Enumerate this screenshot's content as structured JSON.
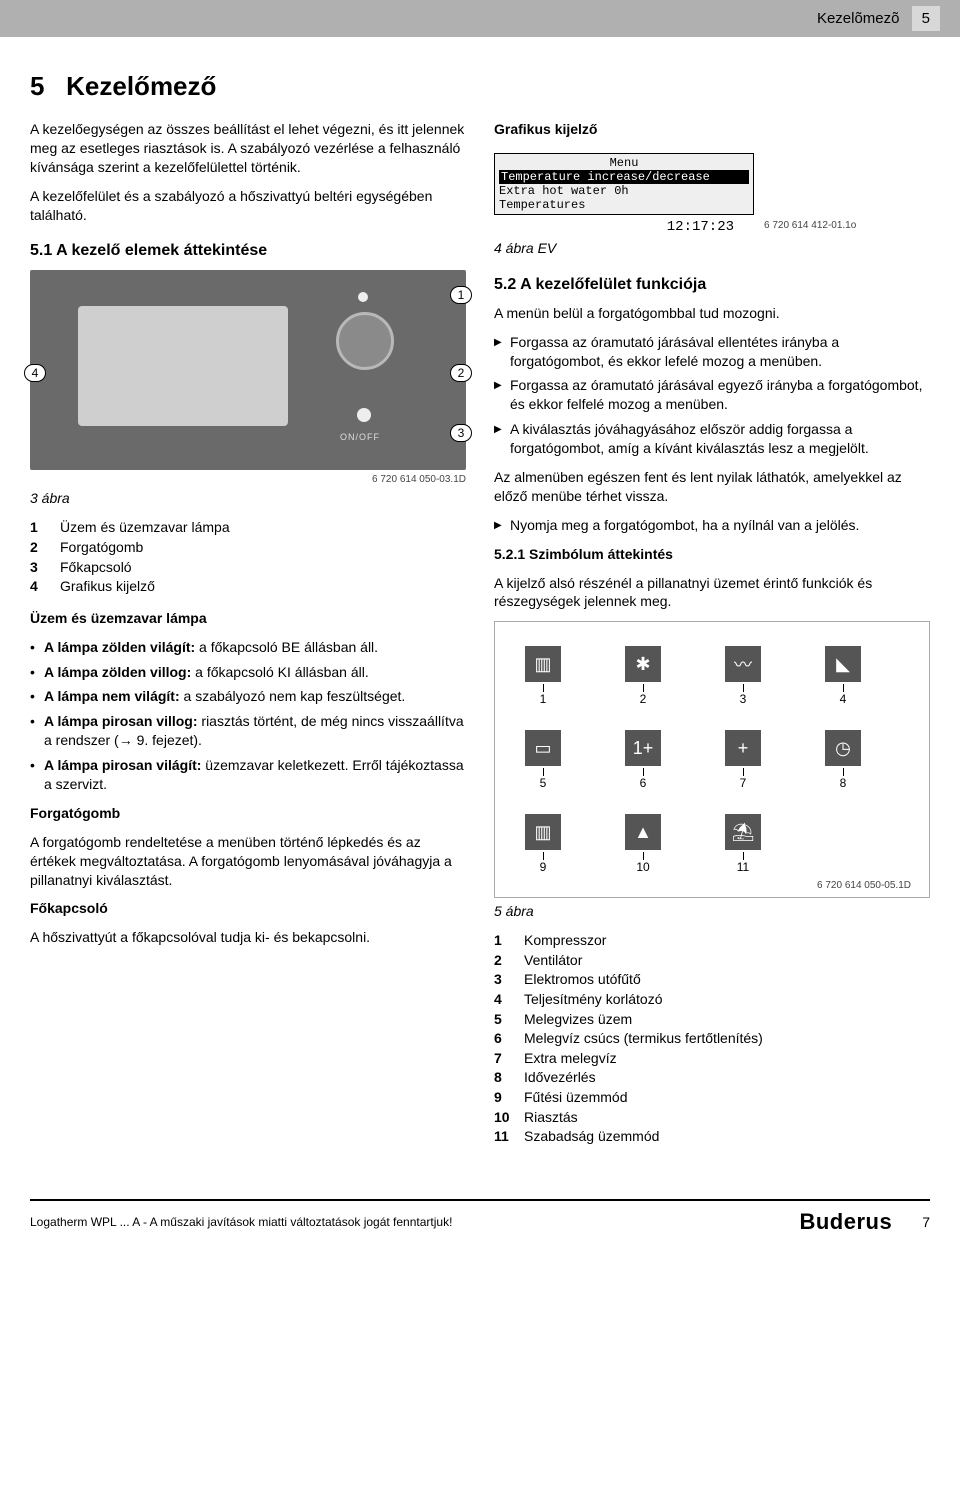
{
  "header": {
    "title": "Kezelõmezõ",
    "page_top": "5"
  },
  "section": {
    "num_title": "5",
    "title": "Kezelőmező"
  },
  "intro": {
    "p1": "A kezelőegységen az összes beállítást el lehet végezni, és itt jelennek meg az esetleges riasztások is. A szabályozó vezérlése a felhasználó kívánsága szerint a kezelőfelülettel történik.",
    "p2": "A kezelőfelület és a szabályozó a hőszivattyú beltéri egységében található."
  },
  "sec51": {
    "heading": "5.1   A kezelő elemek áttekintése"
  },
  "fig3": {
    "label": "3 ábra",
    "callouts": [
      "1",
      "2",
      "3",
      "4"
    ],
    "onoff": "ON/OFF",
    "imgref": "6 720 614 050-03.1D",
    "legend": [
      {
        "n": "1",
        "t": "Üzem és üzemzavar lámpa"
      },
      {
        "n": "2",
        "t": "Forgatógomb"
      },
      {
        "n": "3",
        "t": "Főkapcsoló"
      },
      {
        "n": "4",
        "t": "Grafikus kijelző"
      }
    ]
  },
  "lampa": {
    "heading": "Üzem és üzemzavar lámpa",
    "items": [
      {
        "b": "A lámpa zölden világít:",
        "t": " a főkapcsoló BE állásban áll."
      },
      {
        "b": "A lámpa zölden villog:",
        "t": " a főkapcsoló KI állásban áll."
      },
      {
        "b": "A lámpa nem világít:",
        "t": " a szabályozó nem kap feszültséget."
      },
      {
        "b": "A lámpa pirosan villog:",
        "t": " riasztás történt, de még nincs visszaállítva a rendszer (→ 9. fejezet)."
      },
      {
        "b": "A lámpa pirosan világít:",
        "t": " üzemzavar keletkezett. Erről tájékoztassa a szervizt."
      }
    ]
  },
  "forgat": {
    "heading": "Forgatógomb",
    "p": "A forgatógomb rendeltetése a menüben történő lépkedés és az értékek megváltoztatása. A forgatógomb lenyomásával jóváhagyja a pillanatnyi kiválasztást."
  },
  "fokap": {
    "heading": "Főkapcsoló",
    "p": "A hőszivattyút a főkapcsolóval tudja ki- és bekapcsolni."
  },
  "grafkij": {
    "heading": "Grafikus kijelző"
  },
  "lcd": {
    "l1": "Menu",
    "l2": "Temperature increase/decrease",
    "l3": "Extra hot water           0h",
    "l4": "Temperatures",
    "time": "12:17:23",
    "ref": "6 720 614 412-01.1o"
  },
  "fig4": {
    "label": "4 ábra   EV"
  },
  "sec52": {
    "heading": "5.2   A kezelőfelület funkciója",
    "p1": "A menün belül a forgatógombbal tud mozogni.",
    "items": [
      "Forgassa az óramutató járásával ellentétes irányba a forgatógombot, és ekkor lefelé mozog a menüben.",
      "Forgassa az óramutató járásával egyező irányba a forgatógombot, és ekkor felfelé mozog a menüben.",
      "A kiválasztás jóváhagyásához először addig forgassa a forgatógombot, amíg a kívánt kiválasztás lesz a megjelölt."
    ],
    "p2": "Az almenüben egészen fent és lent nyilak láthatók, amelyekkel az előző menübe térhet vissza.",
    "items2": [
      "Nyomja meg a forgatógombot, ha a nyílnál van a jelölés."
    ]
  },
  "sec521": {
    "heading": "5.2.1   Szimbólum áttekintés",
    "p": "A kijelző alsó részénél a pillanatnyi üzemet érintő funkciók és részegységek jelennek meg."
  },
  "fig5": {
    "label": "5 ábra",
    "ref": "6 720 614 050-05.1D",
    "icons": [
      {
        "n": "1",
        "g": "▥"
      },
      {
        "n": "2",
        "g": "✱"
      },
      {
        "n": "3",
        "g": "〰"
      },
      {
        "n": "4",
        "g": "◣"
      },
      {
        "n": "5",
        "g": "▭"
      },
      {
        "n": "6",
        "g": "1+"
      },
      {
        "n": "7",
        "g": "+"
      },
      {
        "n": "8",
        "g": "◷"
      },
      {
        "n": "9",
        "g": "▥"
      },
      {
        "n": "10",
        "g": "▲"
      },
      {
        "n": "11",
        "g": "⛱"
      }
    ],
    "legend": [
      {
        "n": "1",
        "t": "Kompresszor"
      },
      {
        "n": "2",
        "t": "Ventilátor"
      },
      {
        "n": "3",
        "t": "Elektromos utófűtő"
      },
      {
        "n": "4",
        "t": "Teljesítmény korlátozó"
      },
      {
        "n": "5",
        "t": "Melegvizes üzem"
      },
      {
        "n": "6",
        "t": "Melegvíz csúcs (termikus fertőtlenítés)"
      },
      {
        "n": "7",
        "t": "Extra melegvíz"
      },
      {
        "n": "8",
        "t": "Idővezérlés"
      },
      {
        "n": "9",
        "t": "Fűtési üzemmód"
      },
      {
        "n": "10",
        "t": "Riasztás"
      },
      {
        "n": "11",
        "t": "Szabadság üzemmód"
      }
    ]
  },
  "footer": {
    "left": "Logatherm WPL ... A - A műszaki javítások miatti változtatások jogát fenntartjuk!",
    "brand": "Buderus",
    "page": "7"
  }
}
